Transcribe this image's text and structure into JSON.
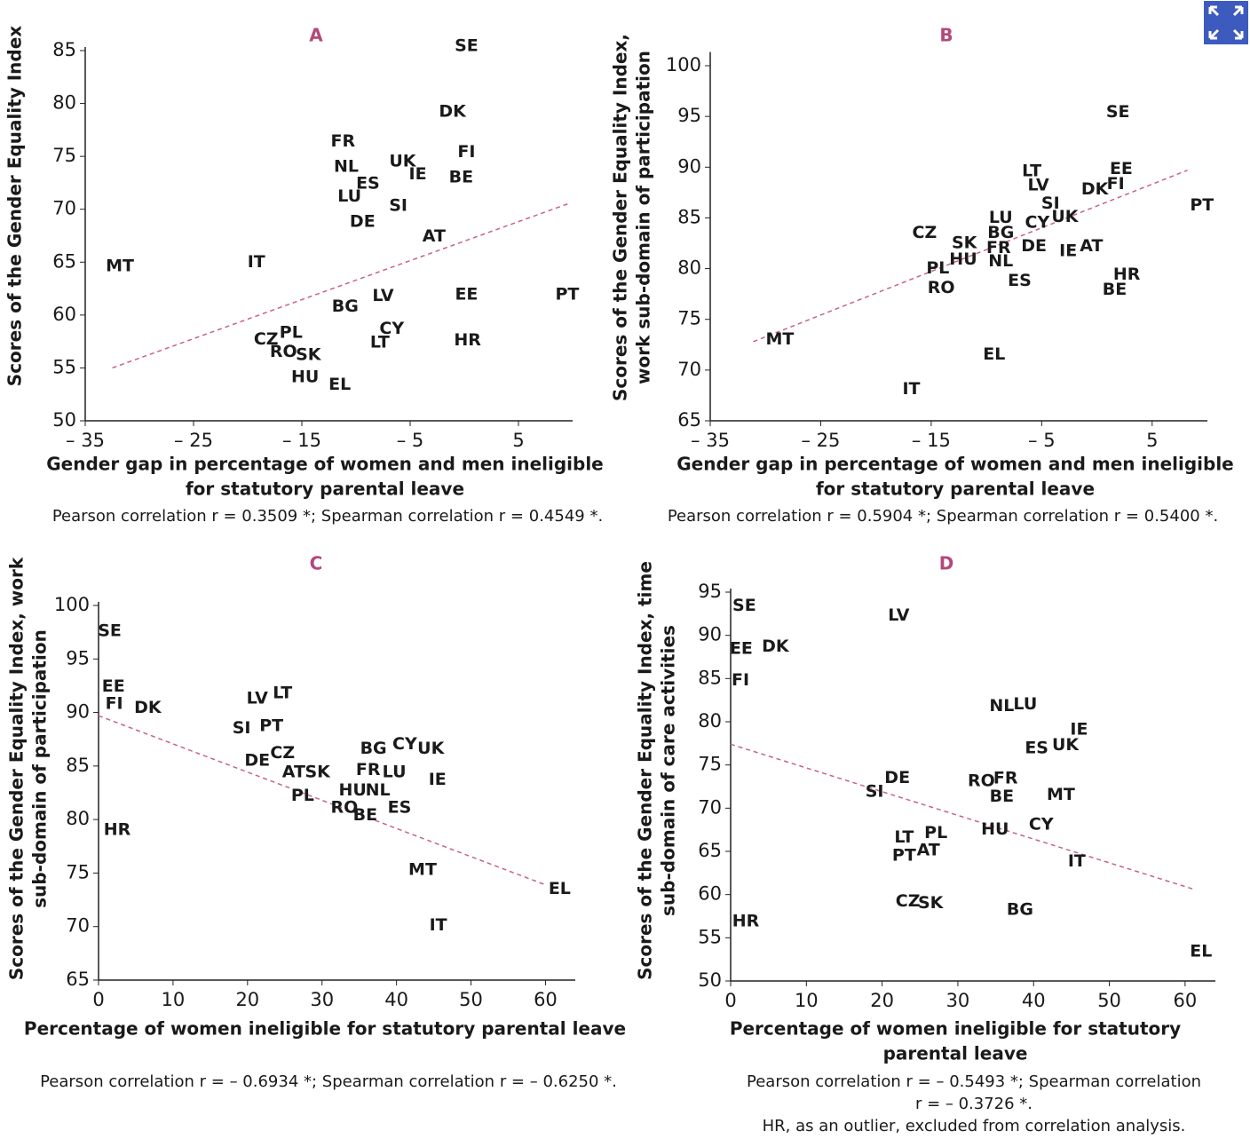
{
  "chart_data": [
    {
      "type": "scatter",
      "title": "A",
      "x_label": [
        "Gender gap in percentage of women and men ineligible",
        "for statutory parental leave"
      ],
      "y_label": [
        "Scores of the Gender Equality Index"
      ],
      "notes": [
        "Pearson correlation r = 0.3509 *; Spearman correlation r = 0.4549 *."
      ],
      "xlim": [
        -35,
        10
      ],
      "ylim": [
        50,
        85
      ],
      "xticks": [
        {
          "value": -35,
          "label": "– 35"
        },
        {
          "value": -25,
          "label": "– 25"
        },
        {
          "value": -15,
          "label": "– 15"
        },
        {
          "value": -5,
          "label": "– 5"
        },
        5
      ],
      "yticks": [
        50,
        55,
        60,
        65,
        70,
        75,
        80,
        85
      ],
      "point_labels": [
        "SE",
        "DK",
        "FI",
        "FR",
        "NL",
        "UK",
        "IE",
        "ES",
        "BE",
        "LU",
        "SI",
        "DE",
        "AT",
        "MT",
        "IT",
        "BG",
        "LV",
        "EE",
        "PT",
        "CY",
        "CZ",
        "PL",
        "RO",
        "SK",
        "LT",
        "HR",
        "HU",
        "EL"
      ],
      "x": [
        0.2,
        -1.1,
        0.2,
        -11.2,
        -10.9,
        -5.7,
        -4.3,
        -8.9,
        -0.3,
        -10.6,
        -6.1,
        -9.4,
        -2.8,
        -31.8,
        -19.2,
        -11.0,
        -7.5,
        0.2,
        9.5,
        -6.7,
        -18.3,
        -16.0,
        -16.7,
        -14.4,
        -7.8,
        0.3,
        -14.7,
        -11.5
      ],
      "values": [
        85.4,
        79.2,
        75.4,
        76.4,
        74.0,
        74.5,
        73.3,
        72.4,
        73.0,
        71.2,
        70.3,
        68.8,
        67.4,
        64.6,
        65.0,
        60.8,
        61.8,
        61.9,
        61.9,
        58.7,
        57.7,
        58.3,
        56.5,
        56.2,
        57.4,
        57.6,
        54.1,
        53.4
      ],
      "trend": {
        "x": [
          -32.5,
          9.8
        ],
        "values": [
          55.0,
          70.6
        ]
      },
      "trend_color": "#c9637f",
      "title_color": "#b5487a"
    },
    {
      "type": "scatter",
      "title": "B",
      "x_label": [
        "Gender gap in percentage of women and men ineligible",
        "for statutory parental leave"
      ],
      "y_label": [
        "Scores of the Gender Equality Index,",
        "work sub-domain of participation"
      ],
      "notes": [
        "Pearson correlation r = 0.5904 *; Spearman correlation r = 0.5400 *."
      ],
      "xlim": [
        -35,
        10
      ],
      "ylim": [
        65,
        101
      ],
      "xticks": [
        {
          "value": -35,
          "label": "– 35"
        },
        {
          "value": -25,
          "label": "– 25"
        },
        {
          "value": -15,
          "label": "– 15"
        },
        {
          "value": -5,
          "label": "– 5"
        },
        5
      ],
      "yticks": [
        65,
        70,
        75,
        80,
        85,
        90,
        95,
        100
      ],
      "point_labels": [
        "SE",
        "EE",
        "FI",
        "DK",
        "PT",
        "LT",
        "LV",
        "SI",
        "UK",
        "CY",
        "LU",
        "BG",
        "FR",
        "CZ",
        "SK",
        "DE",
        "IE",
        "AT",
        "HU",
        "NL",
        "PL",
        "RO",
        "ES",
        "HR",
        "BE",
        "MT",
        "EL",
        "IT"
      ],
      "x": [
        1.9,
        2.2,
        1.7,
        -0.2,
        9.5,
        -5.9,
        -5.3,
        -4.2,
        -2.9,
        -5.4,
        -8.7,
        -8.7,
        -8.9,
        -15.6,
        -12.0,
        -5.7,
        -2.6,
        -0.5,
        -12.1,
        -8.7,
        -14.4,
        -14.1,
        -7.0,
        2.7,
        1.6,
        -28.7,
        -9.3,
        -16.8
      ],
      "values": [
        95.4,
        89.8,
        88.3,
        87.8,
        86.2,
        89.6,
        88.2,
        86.4,
        85.1,
        84.5,
        85.0,
        83.5,
        82.0,
        83.5,
        82.5,
        82.2,
        81.7,
        82.2,
        80.9,
        80.7,
        80.0,
        78.1,
        78.8,
        79.4,
        77.9,
        73.0,
        71.5,
        68.1
      ],
      "trend": {
        "x": [
          -31.1,
          8.2
        ],
        "values": [
          72.8,
          89.7
        ]
      },
      "trend_color": "#c9637f",
      "title_color": "#b5487a"
    },
    {
      "type": "scatter",
      "title": "C",
      "x_label": [
        "Percentage of women ineligible for statutory parental leave"
      ],
      "y_label": [
        "Scores of the Gender Equality Index, work",
        "sub-domain of participation"
      ],
      "notes": [
        "Pearson correlation r =  – 0.6934 *; Spearman correlation r =  – 0.6250 *."
      ],
      "xlim": [
        0,
        64
      ],
      "ylim": [
        65,
        100
      ],
      "xticks": [
        0,
        10,
        20,
        30,
        40,
        50,
        60
      ],
      "yticks": [
        65,
        70,
        75,
        80,
        85,
        90,
        95,
        100
      ],
      "point_labels": [
        "SE",
        "EE",
        "FI",
        "DK",
        "LV",
        "LT",
        "SI",
        "PT",
        "CZ",
        "DE",
        "AT",
        "SK",
        "PL",
        "BG",
        "CY",
        "UK",
        "FR",
        "LU",
        "IE",
        "HU",
        "NL",
        "RO",
        "BE",
        "ES",
        "HR",
        "MT",
        "IT",
        "EL"
      ],
      "x": [
        1.5,
        2.0,
        2.1,
        6.6,
        21.3,
        24.7,
        19.2,
        23.2,
        24.7,
        21.3,
        26.2,
        29.4,
        27.4,
        36.9,
        41.1,
        44.6,
        36.2,
        39.7,
        45.5,
        34.1,
        37.5,
        33.0,
        35.8,
        40.4,
        2.5,
        43.5,
        45.6,
        61.9
      ],
      "values": [
        97.6,
        92.4,
        90.8,
        90.4,
        91.3,
        91.8,
        88.5,
        88.7,
        86.2,
        85.5,
        84.4,
        84.4,
        82.2,
        86.6,
        87.0,
        86.6,
        84.6,
        84.4,
        83.7,
        82.7,
        82.7,
        81.1,
        80.4,
        81.1,
        79.0,
        75.3,
        70.1,
        73.5
      ],
      "trend": {
        "x": [
          0,
          60
        ],
        "values": [
          89.7,
          73.9
        ]
      },
      "trend_color": "#c9637f",
      "title_color": "#b5487a"
    },
    {
      "type": "scatter",
      "title": "D",
      "x_label": [
        "Percentage of women ineligible for statutory",
        "parental leave"
      ],
      "y_label": [
        "Scores of the Gender Equality Index, time",
        "sub-domain of care activities"
      ],
      "notes": [
        "Pearson correlation r =  – 0.5493 *; Spearman correlation",
        "r =  – 0.3726 *.",
        "HR, as an outlier, excluded from correlation analysis."
      ],
      "xlim": [
        0,
        64
      ],
      "ylim": [
        50,
        95
      ],
      "xticks": [
        0,
        10,
        20,
        30,
        40,
        50,
        60
      ],
      "yticks": [
        50,
        55,
        60,
        65,
        70,
        75,
        80,
        85,
        90,
        95
      ],
      "point_labels": [
        "SE",
        "LV",
        "EE",
        "DK",
        "FI",
        "NL",
        "LU",
        "IE",
        "ES",
        "UK",
        "DE",
        "SI",
        "RO",
        "FR",
        "BE",
        "MT",
        "CY",
        "HU",
        "LT",
        "PL",
        "PT",
        "AT",
        "IT",
        "CZ",
        "SK",
        "BG",
        "HR",
        "EL"
      ],
      "x": [
        1.8,
        22.2,
        1.4,
        5.9,
        1.3,
        35.8,
        38.9,
        46.0,
        40.4,
        44.2,
        22.0,
        19.0,
        33.1,
        36.3,
        35.8,
        43.6,
        41.0,
        34.9,
        22.9,
        27.1,
        22.9,
        26.1,
        45.7,
        23.4,
        26.4,
        38.2,
        2.0,
        62.1
      ],
      "values": [
        93.4,
        92.3,
        88.4,
        88.7,
        84.8,
        81.8,
        82.0,
        79.1,
        76.9,
        77.3,
        73.5,
        71.9,
        73.1,
        73.4,
        71.3,
        71.5,
        68.1,
        67.5,
        66.6,
        67.1,
        64.5,
        65.1,
        63.8,
        59.2,
        59.0,
        58.2,
        56.9,
        53.4
      ],
      "trend": {
        "x": [
          0,
          61.2
        ],
        "values": [
          77.4,
          60.6
        ]
      },
      "trend_color": "#c9637f",
      "title_color": "#b5487a"
    }
  ]
}
